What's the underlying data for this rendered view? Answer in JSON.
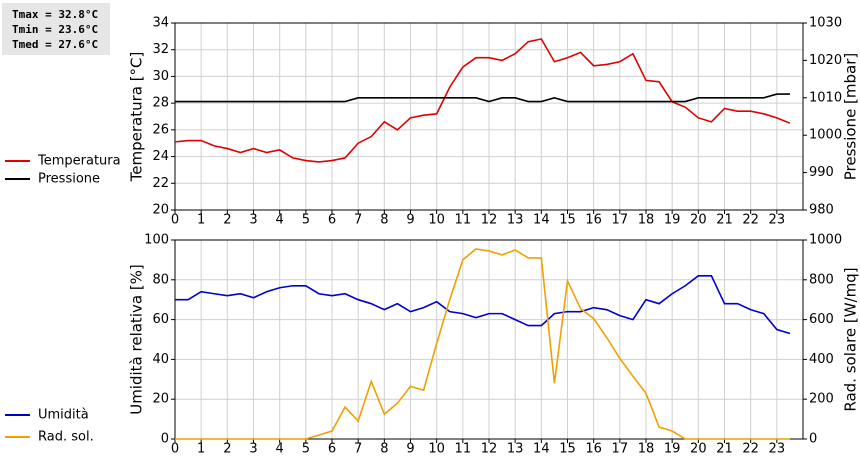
{
  "chart_data": [
    {
      "type": "line",
      "annotations": [
        "Tmax = 32.8°C",
        "Tmin = 23.6°C",
        "Tmed = 27.6°C"
      ],
      "ylabel": "Temperatura [°C]",
      "y2label": "Pressione [mbar]",
      "x": [
        0,
        0.5,
        1,
        1.5,
        2,
        2.5,
        3,
        3.5,
        4,
        4.5,
        5,
        5.5,
        6,
        6.5,
        7,
        7.5,
        8,
        8.5,
        9,
        9.5,
        10,
        10.5,
        11,
        11.5,
        12,
        12.5,
        13,
        13.5,
        14,
        14.5,
        15,
        15.5,
        16,
        16.5,
        17,
        17.5,
        18,
        18.5,
        19,
        19.5,
        20,
        20.5,
        21,
        21.5,
        22,
        22.5,
        23,
        23.5
      ],
      "xlim": [
        0,
        24
      ],
      "xticks": [
        0,
        1,
        2,
        3,
        4,
        5,
        6,
        7,
        8,
        9,
        10,
        11,
        12,
        13,
        14,
        15,
        16,
        17,
        18,
        19,
        20,
        21,
        22,
        23
      ],
      "ylim": [
        20,
        34
      ],
      "yticks": [
        20,
        22,
        24,
        26,
        28,
        30,
        32,
        34
      ],
      "y2lim": [
        980,
        1030
      ],
      "y2ticks": [
        980,
        990,
        1000,
        1010,
        1020,
        1030
      ],
      "grid": true,
      "series": [
        {
          "name": "Temperatura",
          "color": "#e00000",
          "values": [
            25.1,
            25.2,
            25.2,
            24.8,
            24.6,
            24.3,
            24.6,
            24.3,
            24.5,
            23.9,
            23.7,
            23.6,
            23.7,
            23.9,
            25.0,
            25.5,
            26.6,
            26.0,
            26.9,
            27.1,
            27.2,
            29.2,
            30.7,
            31.4,
            31.4,
            31.2,
            31.7,
            32.6,
            32.8,
            31.1,
            31.4,
            31.8,
            30.8,
            30.9,
            31.1,
            31.7,
            29.7,
            29.6,
            28.1,
            27.7,
            26.9,
            26.6,
            27.6,
            27.4,
            27.4,
            27.2,
            26.9,
            26.5
          ]
        },
        {
          "name": "Pressione",
          "color": "#000000",
          "axis": "y2",
          "values": [
            1009,
            1009,
            1009,
            1009,
            1009,
            1009,
            1009,
            1009,
            1009,
            1009,
            1009,
            1009,
            1009,
            1009,
            1010,
            1010,
            1010,
            1010,
            1010,
            1010,
            1010,
            1010,
            1010,
            1010,
            1009,
            1010,
            1010,
            1009,
            1009,
            1010,
            1009,
            1009,
            1009,
            1009,
            1009,
            1009,
            1009,
            1009,
            1009,
            1009,
            1010,
            1010,
            1010,
            1010,
            1010,
            1010,
            1011,
            1011
          ]
        }
      ]
    },
    {
      "type": "line",
      "ylabel": "Umidità relativa [%]",
      "y2label": "Rad. solare [W/mq]",
      "x": [
        0,
        0.5,
        1,
        1.5,
        2,
        2.5,
        3,
        3.5,
        4,
        4.5,
        5,
        5.5,
        6,
        6.5,
        7,
        7.5,
        8,
        8.5,
        9,
        9.5,
        10,
        10.5,
        11,
        11.5,
        12,
        12.5,
        13,
        13.5,
        14,
        14.5,
        15,
        15.5,
        16,
        16.5,
        17,
        17.5,
        18,
        18.5,
        19,
        19.5,
        20,
        20.5,
        21,
        21.5,
        22,
        22.5,
        23,
        23.5
      ],
      "xlim": [
        0,
        24
      ],
      "xticks": [
        0,
        1,
        2,
        3,
        4,
        5,
        6,
        7,
        8,
        9,
        10,
        11,
        12,
        13,
        14,
        15,
        16,
        17,
        18,
        19,
        20,
        21,
        22,
        23
      ],
      "ylim": [
        0,
        100
      ],
      "yticks": [
        0,
        20,
        40,
        60,
        80,
        100
      ],
      "y2lim": [
        0,
        1000
      ],
      "y2ticks": [
        0,
        200,
        400,
        600,
        800,
        1000
      ],
      "grid": true,
      "series": [
        {
          "name": "Umidità",
          "color": "#0000cc",
          "values": [
            70,
            70,
            74,
            73,
            72,
            73,
            71,
            74,
            76,
            77,
            77,
            73,
            72,
            73,
            70,
            68,
            65,
            68,
            64,
            66,
            69,
            64,
            63,
            61,
            63,
            63,
            60,
            57,
            57,
            63,
            64,
            64,
            66,
            65,
            62,
            60,
            70,
            68,
            73,
            77,
            82,
            82,
            68,
            68,
            65,
            63,
            55,
            53
          ]
        },
        {
          "name": "Rad. sol.",
          "color": "#f0a000",
          "axis": "y2",
          "values": [
            0,
            0,
            0,
            0,
            0,
            0,
            0,
            0,
            0,
            0,
            0,
            20,
            40,
            160,
            90,
            290,
            125,
            180,
            265,
            245,
            480,
            700,
            900,
            955,
            945,
            925,
            950,
            910,
            910,
            280,
            795,
            655,
            605,
            510,
            405,
            315,
            230,
            60,
            40,
            0,
            0,
            0,
            0,
            0,
            0,
            0,
            0,
            0
          ]
        }
      ]
    }
  ]
}
